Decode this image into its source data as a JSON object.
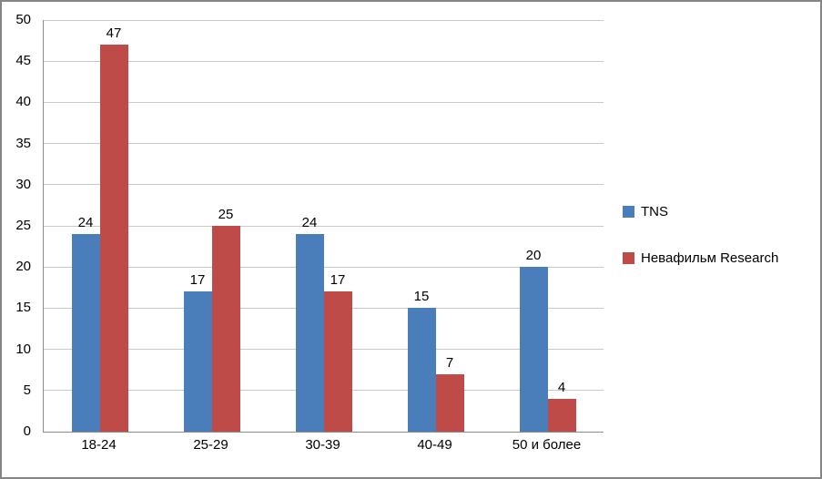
{
  "chart_data": {
    "type": "bar",
    "title": "",
    "xlabel": "",
    "ylabel": "",
    "categories": [
      "18-24",
      "25-29",
      "30-39",
      "40-49",
      "50 и более"
    ],
    "series": [
      {
        "name": "TNS",
        "color": "#4a7ebb",
        "values": [
          24,
          17,
          24,
          15,
          20
        ]
      },
      {
        "name": "Невафильм Research",
        "color": "#be4b48",
        "values": [
          47,
          25,
          17,
          7,
          4
        ]
      }
    ],
    "ylim": [
      0,
      50
    ],
    "ytick_step": 5,
    "yticks": [
      0,
      5,
      10,
      15,
      20,
      25,
      30,
      35,
      40,
      45,
      50
    ],
    "grid": true,
    "legend_position": "right"
  },
  "colors": {
    "series_blue": "#4a7ebb",
    "series_red": "#be4b48",
    "gridline": "#c9c9c9",
    "axis_line": "#8c8c8c",
    "outer_border": "#858585",
    "text": "#000000",
    "background": "#ffffff"
  }
}
